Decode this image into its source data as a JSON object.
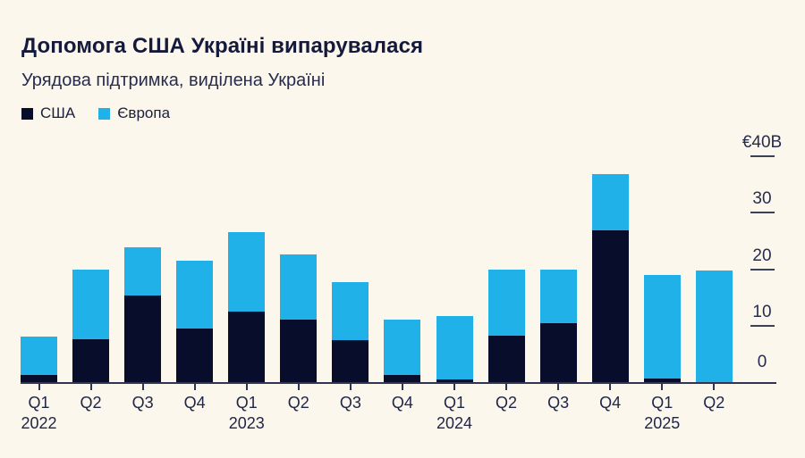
{
  "header": {
    "title": "Допомога США Україні випарувалася",
    "subtitle": "Урядова підтримка, виділена Україні"
  },
  "legend": [
    {
      "label": "США",
      "color": "#070D2B"
    },
    {
      "label": "Європа",
      "color": "#1FB1E8"
    }
  ],
  "colors": {
    "background": "#FBF7EC",
    "us_bar": "#070D2B",
    "europe_bar": "#1FB1E8",
    "text": "#1A1F3E",
    "axis": "#2F3552"
  },
  "chart_data": {
    "type": "bar",
    "stacked": true,
    "unit": "€B",
    "title": "Допомога США Україні випарувалася",
    "subtitle": "Урядова підтримка, виділена Україні",
    "legend_position": "top-left",
    "grid": false,
    "y_axis_side": "right",
    "ylim": [
      0,
      40
    ],
    "categories": [
      "Q1 2022",
      "Q2 2022",
      "Q3 2022",
      "Q4 2022",
      "Q1 2023",
      "Q2 2023",
      "Q3 2023",
      "Q4 2023",
      "Q1 2024",
      "Q2 2024",
      "Q3 2024",
      "Q4 2024",
      "Q1 2025",
      "Q2 2025"
    ],
    "x_tick_labels": [
      "Q1",
      "Q2",
      "Q3",
      "Q4",
      "Q1",
      "Q2",
      "Q3",
      "Q4",
      "Q1",
      "Q2",
      "Q3",
      "Q4",
      "Q1",
      "Q2"
    ],
    "year_labels": {
      "0": "2022",
      "4": "2023",
      "8": "2024",
      "12": "2025"
    },
    "series": [
      {
        "name": "США",
        "color": "#070D2B",
        "values": [
          1.2,
          7.6,
          15.3,
          9.5,
          12.5,
          11.0,
          7.5,
          1.3,
          0.4,
          8.3,
          10.5,
          26.8,
          0.6,
          0
        ]
      },
      {
        "name": "Європа",
        "color": "#1FB1E8",
        "values": [
          6.8,
          12.3,
          8.5,
          12.0,
          14.0,
          11.6,
          10.3,
          9.8,
          11.3,
          11.7,
          9.5,
          10.0,
          18.3,
          19.7
        ]
      }
    ],
    "totals": [
      8.0,
      19.9,
      23.8,
      21.5,
      26.5,
      22.6,
      17.8,
      11.1,
      11.7,
      20.0,
      20.0,
      36.8,
      18.9,
      19.7
    ],
    "y_ticks": [
      {
        "label": "€40B",
        "value": 40,
        "dash": true
      },
      {
        "label": "30",
        "value": 30,
        "dash": true
      },
      {
        "label": "20",
        "value": 20,
        "dash": true
      },
      {
        "label": "10",
        "value": 10,
        "dash": true
      },
      {
        "label": "0",
        "value": 0,
        "dash": false
      }
    ]
  }
}
